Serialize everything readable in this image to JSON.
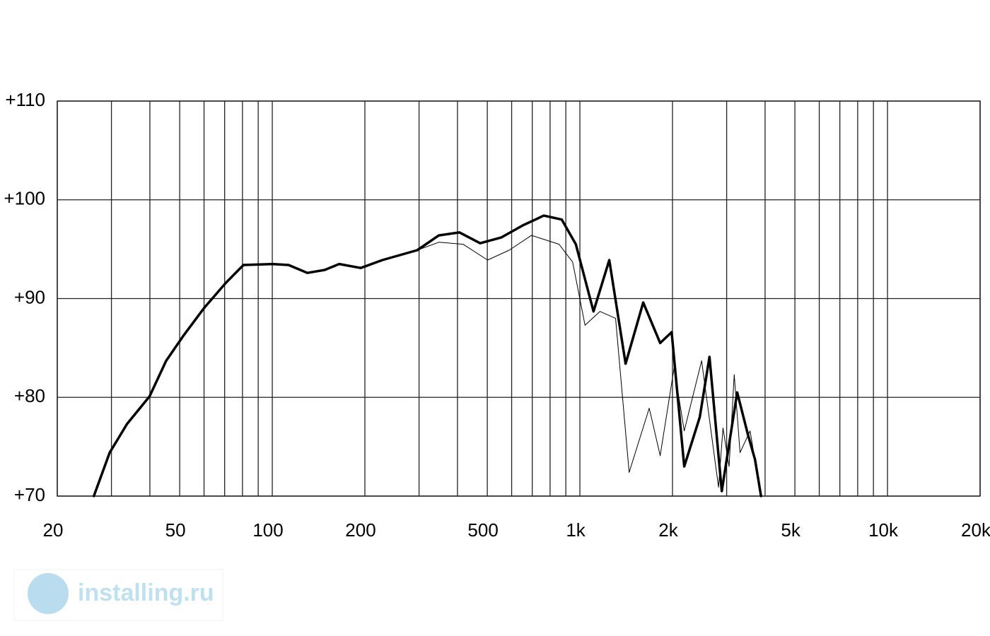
{
  "chart_data": {
    "type": "line",
    "log_x": true,
    "grid": true,
    "xlim": [
      20,
      20000
    ],
    "ylim": [
      70,
      110
    ],
    "xticks": [
      {
        "value": 20,
        "label": "20"
      },
      {
        "value": 50,
        "label": "50"
      },
      {
        "value": 100,
        "label": "100"
      },
      {
        "value": 200,
        "label": "200"
      },
      {
        "value": 500,
        "label": "500"
      },
      {
        "value": 1000,
        "label": "1k"
      },
      {
        "value": 2000,
        "label": "2k"
      },
      {
        "value": 5000,
        "label": "5k"
      },
      {
        "value": 10000,
        "label": "10k"
      },
      {
        "value": 20000,
        "label": "20k"
      }
    ],
    "xgrid": [
      30,
      40,
      60,
      70,
      80,
      90,
      300,
      400,
      600,
      700,
      800,
      900,
      3000,
      4000,
      6000,
      7000,
      8000,
      9000
    ],
    "yticks": [
      {
        "value": 70,
        "label": "+70"
      },
      {
        "value": 80,
        "label": "+80"
      },
      {
        "value": 90,
        "label": "+90"
      },
      {
        "value": 100,
        "label": "+100"
      },
      {
        "value": 110,
        "label": "+110"
      }
    ],
    "series": [
      {
        "color": "#000000",
        "line_width": 3.5,
        "x": [
          26.3,
          29.6,
          33.7,
          39.9,
          45.2,
          51.3,
          60.2,
          70.7,
          80.6,
          100,
          113,
          130,
          148,
          165,
          194,
          228,
          296,
          348,
          406,
          474,
          556,
          651,
          763,
          873,
          970,
          1107,
          1246,
          1408,
          1606,
          1824,
          1987,
          2184,
          2453,
          2638,
          2893,
          3247,
          3520,
          3710,
          3880
        ],
        "values": [
          70,
          74.4,
          77.3,
          80.1,
          83.7,
          86.2,
          89.1,
          91.6,
          93.4,
          93.5,
          93.4,
          92.6,
          92.9,
          93.5,
          93.1,
          93.9,
          94.9,
          96.4,
          96.7,
          95.6,
          96.2,
          97.4,
          98.4,
          98.0,
          95.5,
          88.7,
          93.9,
          83.4,
          89.6,
          85.5,
          86.6,
          73.0,
          78.0,
          84.1,
          70.5,
          80.5,
          76.2,
          73.7,
          70
        ]
      },
      {
        "color": "#000000",
        "line_width": 1,
        "x": [
          296,
          348,
          417,
          501,
          589,
          696,
          855,
          947,
          1039,
          1162,
          1306,
          1446,
          1680,
          1824,
          2025,
          2184,
          2488,
          2823,
          2918,
          3054,
          3174,
          3316,
          3574,
          3880
        ],
        "values": [
          94.9,
          95.7,
          95.5,
          93.9,
          94.9,
          96.4,
          95.5,
          93.7,
          87.3,
          88.7,
          88.0,
          72.4,
          78.9,
          74.1,
          83.0,
          76.6,
          83.7,
          70.9,
          76.9,
          73.0,
          82.3,
          74.4,
          76.6,
          70
        ]
      }
    ]
  },
  "watermark": "installing.ru"
}
